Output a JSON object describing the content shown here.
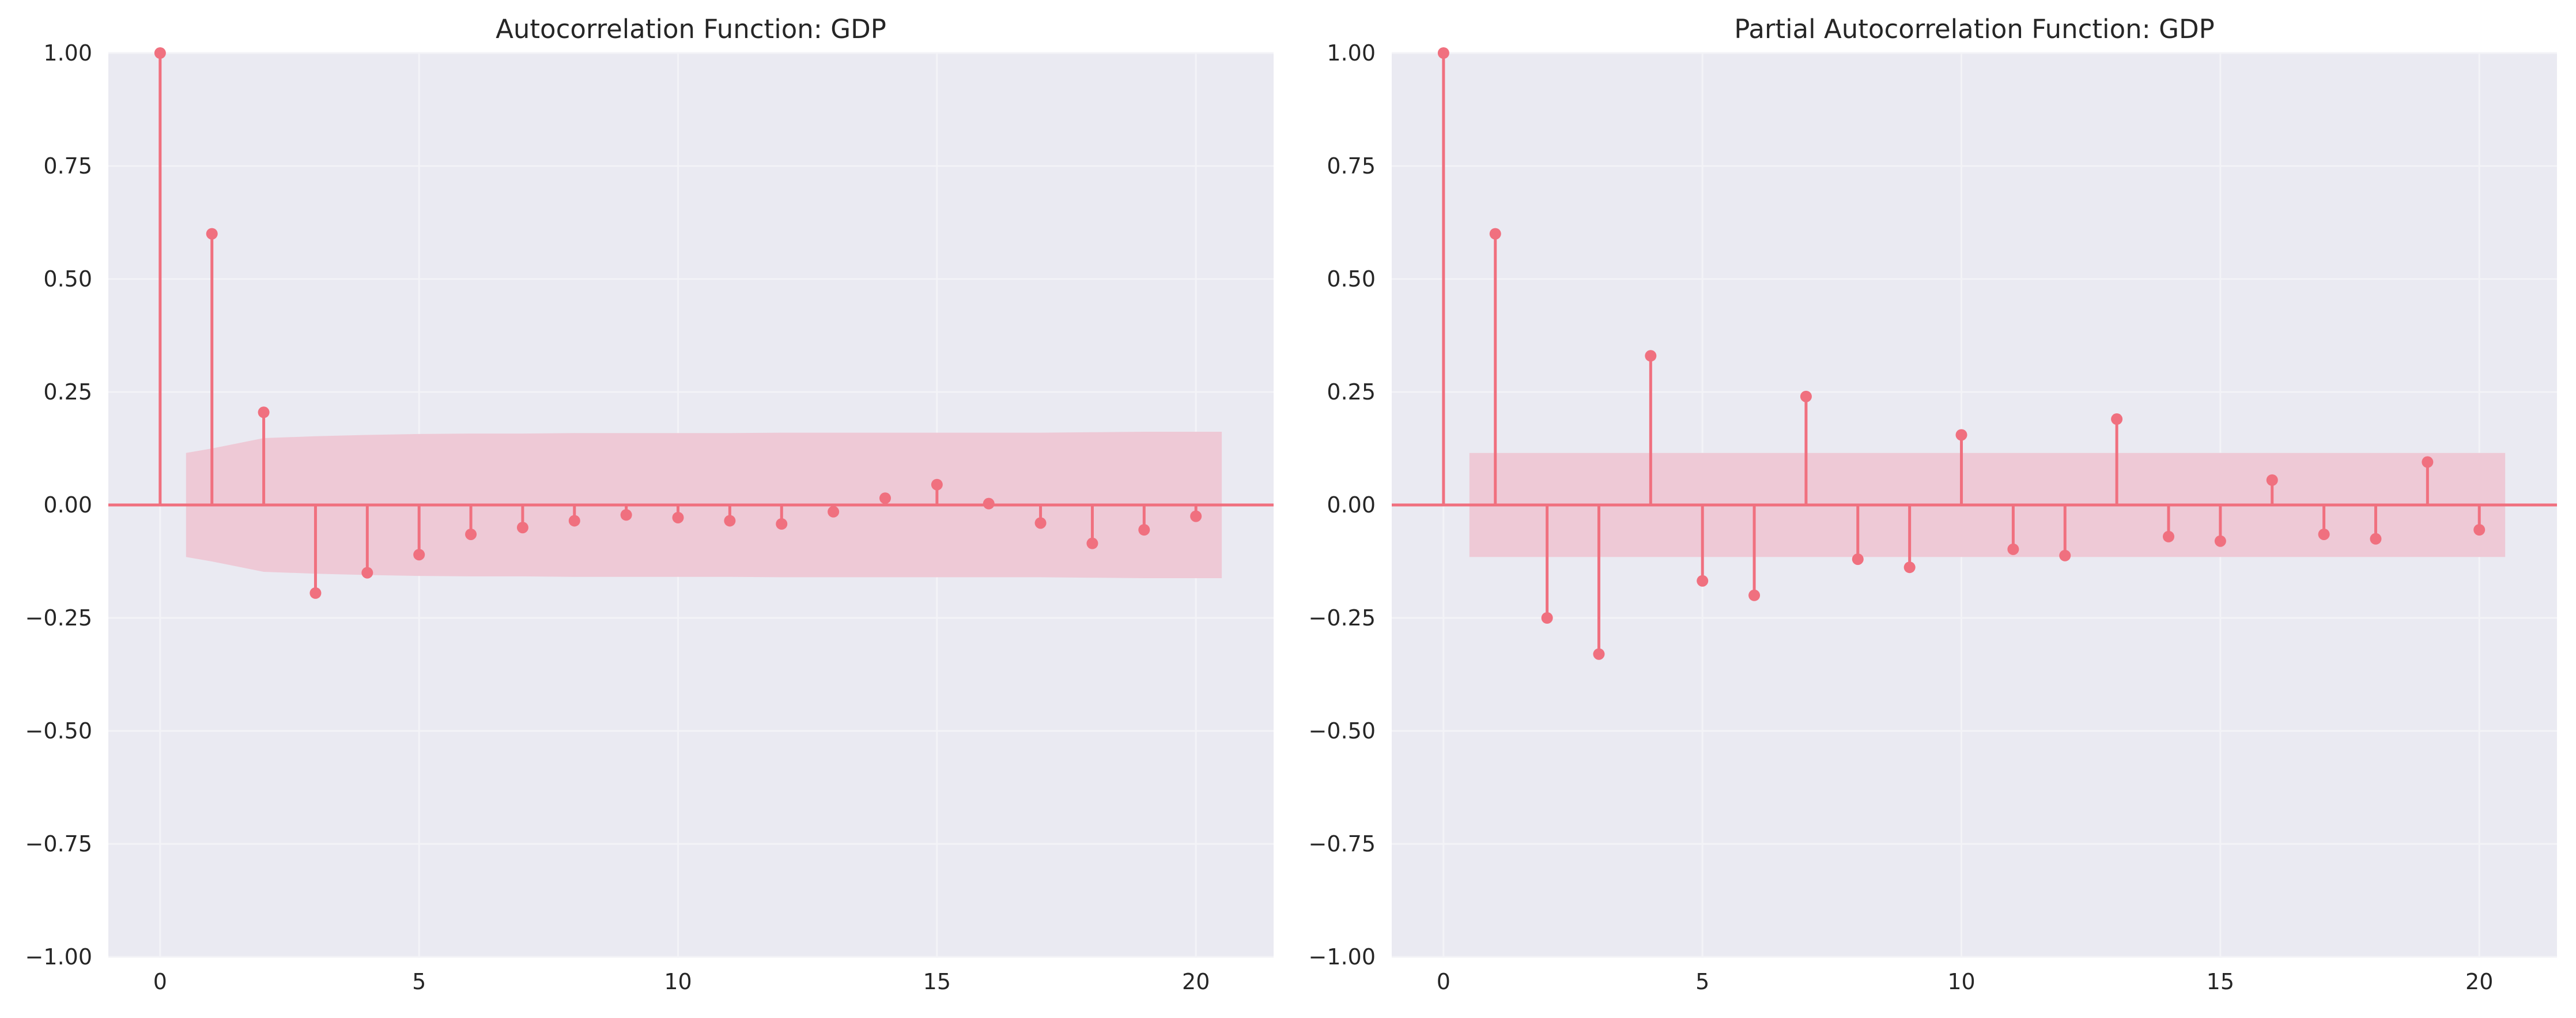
{
  "colors": {
    "accent": "#f0707f",
    "band": "#eec9d6",
    "panel_bg": "#eaeaf2",
    "grid": "#f3f3f7",
    "text": "#262626"
  },
  "chart_data": [
    {
      "type": "stem",
      "title": "Autocorrelation Function: GDP",
      "xlabel": "",
      "ylabel": "",
      "xlim": [
        -1,
        21.5
      ],
      "ylim": [
        -1.0,
        1.0
      ],
      "x_ticks": [
        0,
        5,
        10,
        15,
        20
      ],
      "x_tick_labels": [
        "0",
        "5",
        "10",
        "15",
        "20"
      ],
      "y_ticks": [
        -1.0,
        -0.75,
        -0.5,
        -0.25,
        0.0,
        0.25,
        0.5,
        0.75,
        1.0
      ],
      "y_tick_labels": [
        "−1.00",
        "−0.75",
        "−0.50",
        "−0.25",
        "0.00",
        "0.25",
        "0.50",
        "0.75",
        "1.00"
      ],
      "grid": true,
      "lags": [
        0,
        1,
        2,
        3,
        4,
        5,
        6,
        7,
        8,
        9,
        10,
        11,
        12,
        13,
        14,
        15,
        16,
        17,
        18,
        19,
        20
      ],
      "values": [
        1.0,
        0.6,
        0.205,
        -0.195,
        -0.15,
        -0.11,
        -0.065,
        -0.05,
        -0.035,
        -0.022,
        -0.028,
        -0.035,
        -0.042,
        -0.015,
        0.015,
        0.045,
        0.003,
        -0.04,
        -0.085,
        -0.055,
        -0.025
      ],
      "confidence_band": {
        "lags": [
          0.5,
          1,
          2,
          3,
          4,
          5,
          6,
          7,
          8,
          9,
          10,
          11,
          12,
          13,
          14,
          15,
          16,
          17,
          18,
          19,
          20,
          20.5
        ],
        "upper": [
          0.115,
          0.125,
          0.148,
          0.152,
          0.155,
          0.157,
          0.158,
          0.158,
          0.159,
          0.159,
          0.159,
          0.159,
          0.16,
          0.16,
          0.16,
          0.16,
          0.16,
          0.16,
          0.161,
          0.162,
          0.162,
          0.162
        ]
      }
    },
    {
      "type": "stem",
      "title": "Partial Autocorrelation Function: GDP",
      "xlabel": "",
      "ylabel": "",
      "xlim": [
        -1,
        21.5
      ],
      "ylim": [
        -1.0,
        1.0
      ],
      "x_ticks": [
        0,
        5,
        10,
        15,
        20
      ],
      "x_tick_labels": [
        "0",
        "5",
        "10",
        "15",
        "20"
      ],
      "y_ticks": [
        -1.0,
        -0.75,
        -0.5,
        -0.25,
        0.0,
        0.25,
        0.5,
        0.75,
        1.0
      ],
      "y_tick_labels": [
        "−1.00",
        "−0.75",
        "−0.50",
        "−0.25",
        "0.00",
        "0.25",
        "0.50",
        "0.75",
        "1.00"
      ],
      "grid": true,
      "lags": [
        0,
        1,
        2,
        3,
        4,
        5,
        6,
        7,
        8,
        9,
        10,
        11,
        12,
        13,
        14,
        15,
        16,
        17,
        18,
        19,
        20
      ],
      "values": [
        1.0,
        0.6,
        -0.25,
        -0.33,
        0.33,
        -0.168,
        -0.2,
        0.24,
        -0.12,
        -0.138,
        0.155,
        -0.098,
        -0.112,
        0.19,
        -0.07,
        -0.08,
        0.055,
        -0.065,
        -0.075,
        0.095,
        -0.055
      ],
      "confidence_band": {
        "lags": [
          0.5,
          20.5
        ],
        "upper": [
          0.115,
          0.115
        ]
      }
    }
  ]
}
